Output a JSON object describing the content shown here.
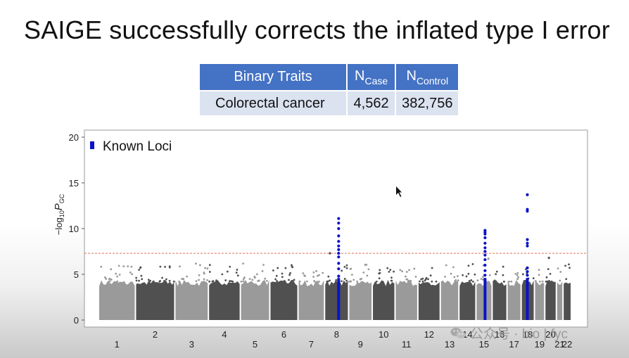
{
  "title": "SAIGE successfully corrects the inflated type I error",
  "table": {
    "headers": [
      {
        "main": "Binary Traits",
        "sub": ""
      },
      {
        "main": "N",
        "sub": "Case"
      },
      {
        "main": "N",
        "sub": "Control"
      }
    ],
    "row": {
      "trait": "Colorectal cancer",
      "n_case": "4,562",
      "n_control": "382,756"
    }
  },
  "watermark": {
    "text": "公众号 · bio | fyc",
    "icon": "wechat-icon"
  },
  "colors": {
    "known_loci": "#0a12c8",
    "chrom_light": "#9a9a9a",
    "chrom_dark": "#505050",
    "threshold": "#e0705a"
  },
  "chart_data": {
    "type": "scatter",
    "subtype": "manhattan",
    "title": "",
    "ylabel": "-log10 P GC",
    "ylabel_parts": {
      "prefix": "−log",
      "sub": "10",
      "var": "P",
      "var_sub": "GC"
    },
    "ylim": [
      0,
      20
    ],
    "yticks": [
      "0",
      "5",
      "10",
      "15",
      "20"
    ],
    "genome_wide_threshold": 7.3,
    "legend": {
      "label": "Known Loci",
      "position": "top-left"
    },
    "chromosomes": [
      {
        "label": "1",
        "start": 0,
        "end": 8.9,
        "row": 2
      },
      {
        "label": "2",
        "start": 8.9,
        "end": 18.4,
        "row": 1
      },
      {
        "label": "3",
        "start": 18.4,
        "end": 26.5,
        "row": 2
      },
      {
        "label": "4",
        "start": 26.5,
        "end": 34.2,
        "row": 1
      },
      {
        "label": "5",
        "start": 34.2,
        "end": 41.3,
        "row": 2
      },
      {
        "label": "6",
        "start": 41.3,
        "end": 48.1,
        "row": 1
      },
      {
        "label": "7",
        "start": 48.1,
        "end": 54.5,
        "row": 2
      },
      {
        "label": "8",
        "start": 54.5,
        "end": 60.3,
        "row": 1
      },
      {
        "label": "9",
        "start": 60.3,
        "end": 66.0,
        "row": 2
      },
      {
        "label": "10",
        "start": 66.0,
        "end": 71.5,
        "row": 1
      },
      {
        "label": "11",
        "start": 71.5,
        "end": 77.0,
        "row": 2
      },
      {
        "label": "12",
        "start": 77.0,
        "end": 82.4,
        "row": 1
      },
      {
        "label": "13",
        "start": 82.4,
        "end": 86.9,
        "row": 2
      },
      {
        "label": "14",
        "start": 86.9,
        "end": 91.0,
        "row": 1
      },
      {
        "label": "15",
        "start": 91.0,
        "end": 94.9,
        "row": 2
      },
      {
        "label": "16",
        "start": 94.9,
        "end": 98.5,
        "row": 1
      },
      {
        "label": "17",
        "start": 98.5,
        "end": 101.9,
        "row": 2
      },
      {
        "label": "18",
        "start": 101.9,
        "end": 105.1,
        "row": 1
      },
      {
        "label": "19",
        "start": 105.1,
        "end": 107.6,
        "row": 2
      },
      {
        "label": "20",
        "start": 107.6,
        "end": 110.4,
        "row": 1
      },
      {
        "label": "21",
        "start": 110.4,
        "end": 112.0,
        "row": 2
      },
      {
        "label": "22",
        "start": 112.0,
        "end": 114.0,
        "row": 2
      }
    ],
    "xlim": [
      0,
      114
    ],
    "known_loci": [
      {
        "chrom": "8",
        "x": 57.9,
        "points": [
          11.1,
          10.6,
          10.0,
          9.2,
          8.6,
          8.1,
          7.7,
          7.3,
          6.9,
          6.2,
          5.6,
          4.8
        ]
      },
      {
        "chrom": "15",
        "x": 93.2,
        "points": [
          9.8,
          9.6,
          9.4,
          9.0,
          8.4,
          7.9,
          7.5,
          7.1,
          6.6,
          6.0,
          5.4,
          4.9
        ]
      },
      {
        "chrom": "18",
        "x": 103.4,
        "points": [
          13.7,
          12.1,
          11.9,
          8.8,
          8.4,
          8.1,
          5.7,
          5.3,
          4.9
        ]
      }
    ],
    "sub_threshold_peaks": [
      {
        "chrom": "8",
        "x": 55.8,
        "value": 7.3
      },
      {
        "chrom": "9",
        "x": 60.8,
        "value": 5.6
      },
      {
        "chrom": "15",
        "x": 94.0,
        "value": 6.7
      },
      {
        "chrom": "20",
        "x": 108.6,
        "value": 6.8
      }
    ]
  }
}
